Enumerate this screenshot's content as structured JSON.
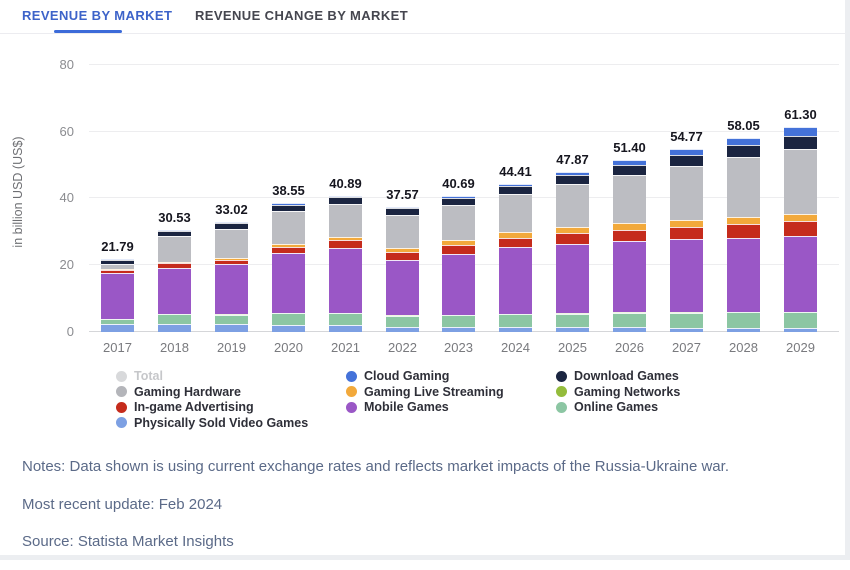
{
  "header": {
    "tabs": [
      {
        "label": "REVENUE BY MARKET",
        "active": true
      },
      {
        "label": "REVENUE CHANGE BY MARKET",
        "active": false
      }
    ],
    "accent_color": "#3c6bd9"
  },
  "chart_data": {
    "type": "bar",
    "stacked": true,
    "categories": [
      "2017",
      "2018",
      "2019",
      "2020",
      "2021",
      "2022",
      "2023",
      "2024",
      "2025",
      "2026",
      "2027",
      "2028",
      "2029"
    ],
    "totals": [
      21.79,
      30.53,
      33.02,
      38.55,
      40.89,
      37.57,
      40.69,
      44.41,
      47.87,
      51.4,
      54.77,
      58.05,
      61.3
    ],
    "totals_labels": [
      "21.79",
      "30.53",
      "33.02",
      "38.55",
      "40.89",
      "37.57",
      "40.69",
      "44.41",
      "47.87",
      "51.40",
      "54.77",
      "58.05",
      "61.30"
    ],
    "ylabel": "in billion USD (US$)",
    "ylim": [
      0,
      80
    ],
    "yticks": [
      0,
      20,
      40,
      60,
      80
    ],
    "grid": true,
    "legend_position": "bottom",
    "series": [
      {
        "name": "Physically Sold Video Games",
        "color": "#7da0e3",
        "values": [
          2.3,
          2.3,
          2.3,
          2.1,
          2.0,
          1.6,
          1.5,
          1.5,
          1.4,
          1.4,
          1.3,
          1.25,
          1.2
        ]
      },
      {
        "name": "Online Games",
        "color": "#8cc6a3",
        "values": [
          1.6,
          3.0,
          2.9,
          3.5,
          3.6,
          3.3,
          3.6,
          3.9,
          4.1,
          4.3,
          4.5,
          4.6,
          4.7
        ]
      },
      {
        "name": "Gaming Networks",
        "color": "#94bc3c",
        "values": [
          0.09,
          0.1,
          0.1,
          0.12,
          0.12,
          0.11,
          0.12,
          0.13,
          0.14,
          0.15,
          0.15,
          0.16,
          0.16
        ]
      },
      {
        "name": "Mobile Games",
        "color": "#9a57c6",
        "values": [
          13.6,
          13.9,
          15.0,
          17.9,
          19.5,
          16.6,
          18.3,
          19.8,
          20.7,
          21.3,
          21.8,
          22.3,
          22.7
        ]
      },
      {
        "name": "In-game Advertising",
        "color": "#c52b1c",
        "values": [
          1.0,
          1.3,
          1.4,
          1.9,
          2.2,
          2.3,
          2.6,
          2.9,
          3.2,
          3.5,
          3.8,
          4.1,
          4.4
        ]
      },
      {
        "name": "Gaming Live Streaming",
        "color": "#f2a93b",
        "values": [
          0.3,
          0.4,
          0.6,
          0.9,
          1.1,
          1.2,
          1.4,
          1.6,
          1.8,
          1.9,
          2.0,
          2.1,
          2.2
        ]
      },
      {
        "name": "Gaming Hardware",
        "color": "#bcbdc2",
        "values": [
          1.5,
          7.7,
          8.6,
          9.8,
          9.9,
          10.0,
          10.5,
          11.6,
          13.0,
          14.5,
          16.2,
          17.8,
          19.4
        ]
      },
      {
        "name": "Download Games",
        "color": "#1b2541",
        "values": [
          1.3,
          1.6,
          1.8,
          1.9,
          2.0,
          2.0,
          2.2,
          2.4,
          2.7,
          3.0,
          3.3,
          3.6,
          3.9
        ]
      },
      {
        "name": "Cloud Gaming",
        "color": "#4472d9",
        "values": [
          0.1,
          0.23,
          0.32,
          0.43,
          0.47,
          0.46,
          0.47,
          0.58,
          0.83,
          1.35,
          1.72,
          2.14,
          2.64
        ]
      }
    ],
    "legend_items": [
      {
        "label": "Total",
        "color": "#d8d9db",
        "disabled": true
      },
      {
        "label": "Cloud Gaming",
        "color": "#4472d9",
        "disabled": false
      },
      {
        "label": "Download Games",
        "color": "#1b2541",
        "disabled": false
      },
      {
        "label": "Gaming Hardware",
        "color": "#b4b5ba",
        "disabled": false
      },
      {
        "label": "Gaming Live Streaming",
        "color": "#f2a93b",
        "disabled": false
      },
      {
        "label": "Gaming Networks",
        "color": "#94bc3c",
        "disabled": false
      },
      {
        "label": "In-game Advertising",
        "color": "#c52b1c",
        "disabled": false
      },
      {
        "label": "Mobile Games",
        "color": "#9a57c6",
        "disabled": false
      },
      {
        "label": "Online Games",
        "color": "#8cc6a3",
        "disabled": false
      },
      {
        "label": "Physically Sold Video Games",
        "color": "#7da0e3",
        "disabled": false
      }
    ]
  },
  "notes": {
    "line1": "Notes: Data shown is using current exchange rates and reflects market impacts of the Russia-Ukraine war.",
    "line2": "Most recent update: Feb 2024",
    "line3": "Source: Statista Market Insights"
  }
}
